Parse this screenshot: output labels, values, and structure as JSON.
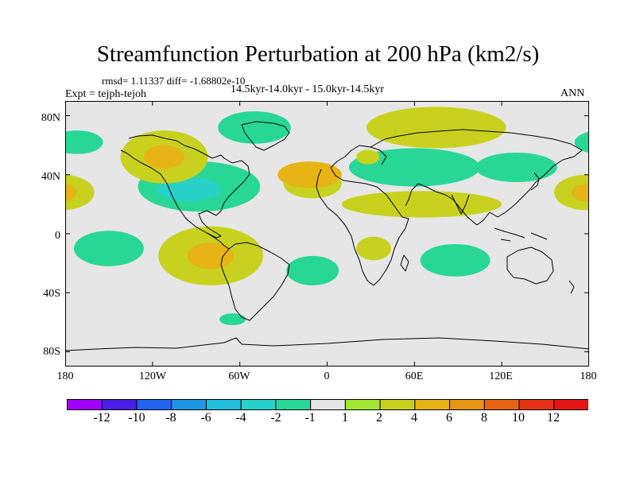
{
  "title": "Streamfunction Perturbation at 200 hPa (km2/s)",
  "stats": "rmsd= 1.11337 diff= -1.68802e-10",
  "experiment": "Expt = tejph-tejoh",
  "period": "14.5kyr-14.0kyr - 15.0kyr-14.5kyr",
  "season": "ANN",
  "map": {
    "projection": "cylindrical equidistant",
    "lon_range": [
      -180,
      180
    ],
    "lat_range": [
      -90,
      90
    ],
    "lat_ticks": [
      {
        "value": 80,
        "label": "80N"
      },
      {
        "value": 40,
        "label": "40N"
      },
      {
        "value": 0,
        "label": "0"
      },
      {
        "value": -40,
        "label": "40S"
      },
      {
        "value": -80,
        "label": "80S"
      }
    ],
    "lon_ticks": [
      {
        "value": -180,
        "label": "180"
      },
      {
        "value": -120,
        "label": "120W"
      },
      {
        "value": -60,
        "label": "60W"
      },
      {
        "value": 0,
        "label": "0"
      },
      {
        "value": 60,
        "label": "60E"
      },
      {
        "value": 120,
        "label": "120E"
      },
      {
        "value": 180,
        "label": "180"
      }
    ],
    "background_color": "#e6e6e6",
    "coastline_color": "#000000",
    "anomaly_regions": [
      {
        "name": "north-atlantic-europe-positive-band",
        "lon": -10,
        "lat": 34,
        "rx": 20,
        "ry": 10,
        "level": 2
      },
      {
        "name": "central-atlantic-positive",
        "lon": -12,
        "lat": 40,
        "rx": 22,
        "ry": 9,
        "level": 4
      },
      {
        "name": "north-america-negative-lobe",
        "lon": -88,
        "lat": 32,
        "rx": 42,
        "ry": 17,
        "level": -2
      },
      {
        "name": "north-america-negative-core",
        "lon": -95,
        "lat": 30,
        "rx": 22,
        "ry": 8,
        "level": -4
      },
      {
        "name": "northeast-pacific-positive",
        "lon": -112,
        "lat": 52,
        "rx": 30,
        "ry": 18,
        "level": 2
      },
      {
        "name": "northeast-pacific-positive-core",
        "lon": -112,
        "lat": 52,
        "rx": 14,
        "ry": 8,
        "level": 4
      },
      {
        "name": "greenland-negative",
        "lon": -50,
        "lat": 72,
        "rx": 25,
        "ry": 11,
        "level": -2
      },
      {
        "name": "alaska-negative",
        "lon": -172,
        "lat": 62,
        "rx": 18,
        "ry": 8,
        "level": -2
      },
      {
        "name": "siberia-positive",
        "lon": 75,
        "lat": 72,
        "rx": 48,
        "ry": 14,
        "level": 2
      },
      {
        "name": "eurasia-negative-band",
        "lon": 60,
        "lat": 45,
        "rx": 45,
        "ry": 13,
        "level": -2
      },
      {
        "name": "central-asia-positive-band",
        "lon": 65,
        "lat": 20,
        "rx": 55,
        "ry": 9,
        "level": 2
      },
      {
        "name": "east-asia-negative",
        "lon": 130,
        "lat": 45,
        "rx": 28,
        "ry": 10,
        "level": -2
      },
      {
        "name": "west-pacific-positive",
        "lon": 178,
        "lat": 28,
        "rx": 22,
        "ry": 12,
        "level": 2
      },
      {
        "name": "west-pacific-positive-core",
        "lon": 178,
        "lat": 28,
        "rx": 10,
        "ry": 6,
        "level": 4
      },
      {
        "name": "south-america-positive",
        "lon": -80,
        "lat": -15,
        "rx": 36,
        "ry": 20,
        "level": 2
      },
      {
        "name": "south-america-positive-core",
        "lon": -80,
        "lat": -15,
        "rx": 16,
        "ry": 9,
        "level": 4
      },
      {
        "name": "south-pacific-negative",
        "lon": -150,
        "lat": -10,
        "rx": 24,
        "ry": 12,
        "level": -2
      },
      {
        "name": "south-atlantic-negative",
        "lon": -10,
        "lat": -25,
        "rx": 18,
        "ry": 10,
        "level": -2
      },
      {
        "name": "southern-africa-positive",
        "lon": 32,
        "lat": -10,
        "rx": 12,
        "ry": 8,
        "level": 2
      },
      {
        "name": "indian-ocean-negative",
        "lon": 88,
        "lat": -18,
        "rx": 24,
        "ry": 11,
        "level": -2
      },
      {
        "name": "drake-passage-negative",
        "lon": -65,
        "lat": -58,
        "rx": 9,
        "ry": 4,
        "level": -2
      },
      {
        "name": "east-europe-small-positive",
        "lon": 28,
        "lat": 52,
        "rx": 8,
        "ry": 5,
        "level": 2
      }
    ]
  },
  "colorbar": {
    "levels": [
      -12,
      -10,
      -8,
      -6,
      -4,
      -2,
      -1,
      1,
      2,
      4,
      6,
      8,
      10,
      12
    ],
    "colors": [
      "#a200ff",
      "#4a1ee6",
      "#1e64f0",
      "#1e96e6",
      "#1ebedc",
      "#28d2c8",
      "#28d796",
      "#e6e6e6",
      "#a0e632",
      "#c8d21e",
      "#e6b414",
      "#e69614",
      "#e66414",
      "#e63214",
      "#e61414"
    ],
    "labels": [
      "-12",
      "-10",
      "-8",
      "-6",
      "-4",
      "-2",
      "-1",
      "1",
      "2",
      "4",
      "6",
      "8",
      "10",
      "12"
    ]
  }
}
